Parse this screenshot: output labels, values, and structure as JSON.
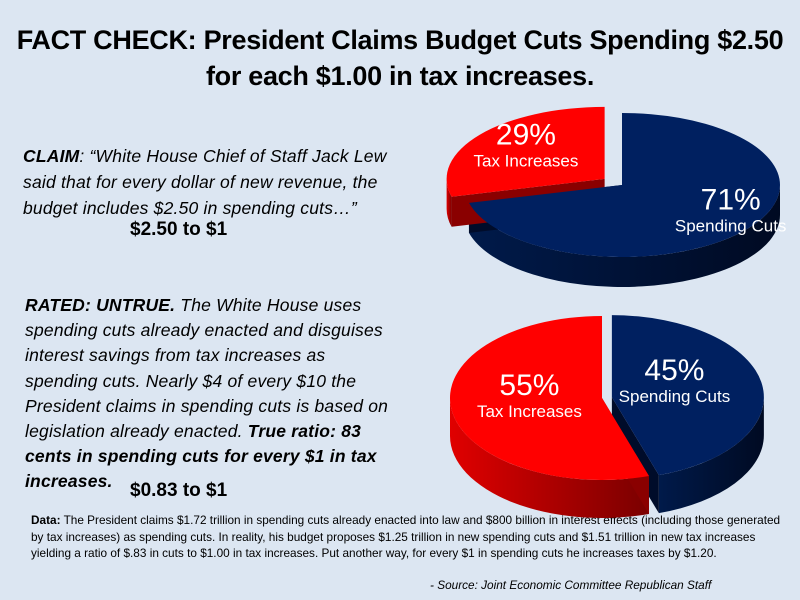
{
  "title": {
    "line1": "FACT CHECK: President Claims Budget Cuts Spending $2.50",
    "line2": "for each $1.00 in tax increases."
  },
  "claim": {
    "label": "CLAIM",
    "text": ": “White House Chief of Staff Jack Lew said that for every dollar of new revenue, the budget includes $2.50 in spending cuts…”",
    "ratio": "$2.50 to $1"
  },
  "rating": {
    "label": "RATED:  UNTRUE.",
    "text": "  The White House uses spending cuts already enacted and disguises interest savings from tax increases as spending cuts. Nearly $4 of every $10 the President claims in spending cuts is based on legislation already enacted. ",
    "emphasis": "True ratio:  83 cents in spending cuts for every $1 in tax increases.",
    "ratio": "$0.83 to $1"
  },
  "data_note": {
    "label": "Data:",
    "text": "  The President claims $1.72 trillion in spending cuts already enacted into law and $800 billion in interest effects (including those generated by tax increases) as spending cuts.  In reality, his budget proposes $1.25 trillion in new spending cuts and $1.51 trillion in new tax increases yielding a ratio of $.83 in cuts to $1.00 in tax increases. Put another  way, for every $1 in spending cuts he increases taxes by $1.20."
  },
  "source": "- Source:  Joint Economic Committee Republican Staff",
  "colors": {
    "background": "#dce6f2",
    "tax_red": "#ff0000",
    "tax_red_side": "#a00000",
    "spending_navy": "#002060",
    "spending_navy_side": "#000c2a"
  },
  "chart_data": [
    {
      "type": "pie",
      "title": "President's claim",
      "style": "3d-exploded",
      "slices": [
        {
          "name": "Spending Cuts",
          "value": 71,
          "pct_label": "71%",
          "label": "Spending Cuts",
          "color": "#002060",
          "exploded": false
        },
        {
          "name": "Tax Increases",
          "value": 29,
          "pct_label": "29%",
          "label": "Tax Increases",
          "color": "#ff0000",
          "exploded": true
        }
      ]
    },
    {
      "type": "pie",
      "title": "True ratio",
      "style": "3d-exploded",
      "slices": [
        {
          "name": "Spending Cuts",
          "value": 45,
          "pct_label": "45%",
          "label": "Spending Cuts",
          "color": "#002060",
          "exploded": true
        },
        {
          "name": "Tax Increases",
          "value": 55,
          "pct_label": "55%",
          "label": "Tax Increases",
          "color": "#ff0000",
          "exploded": false
        }
      ]
    }
  ]
}
